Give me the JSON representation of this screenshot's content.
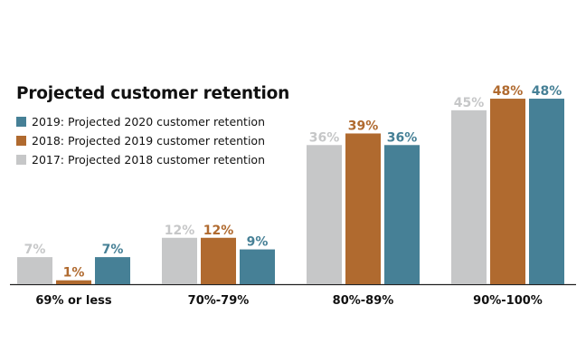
{
  "chart_data": {
    "type": "bar",
    "title": "Projected customer retention",
    "xlabel": "",
    "ylabel": "",
    "ylim": [
      0,
      50
    ],
    "grid": false,
    "legend_position": "top-left",
    "categories": [
      "69% or less",
      "70%-79%",
      "80%-89%",
      "90%-100%"
    ],
    "series": [
      {
        "name": "2017: Projected 2018 customer retention",
        "color": "#c6c7c8",
        "values": [
          7,
          12,
          36,
          45
        ],
        "labels": [
          "7%",
          "12%",
          "36%",
          "45%"
        ]
      },
      {
        "name": "2018: Projected 2019 customer retention",
        "color": "#b06a2f",
        "values": [
          1,
          12,
          39,
          48
        ],
        "labels": [
          "1%",
          "12%",
          "39%",
          "48%"
        ]
      },
      {
        "name": "2019: Projected 2020 customer retention",
        "color": "#468096",
        "values": [
          7,
          9,
          36,
          48
        ],
        "labels": [
          "7%",
          "9%",
          "36%",
          "48%"
        ]
      }
    ],
    "legend_order": [
      2,
      1,
      0
    ]
  }
}
